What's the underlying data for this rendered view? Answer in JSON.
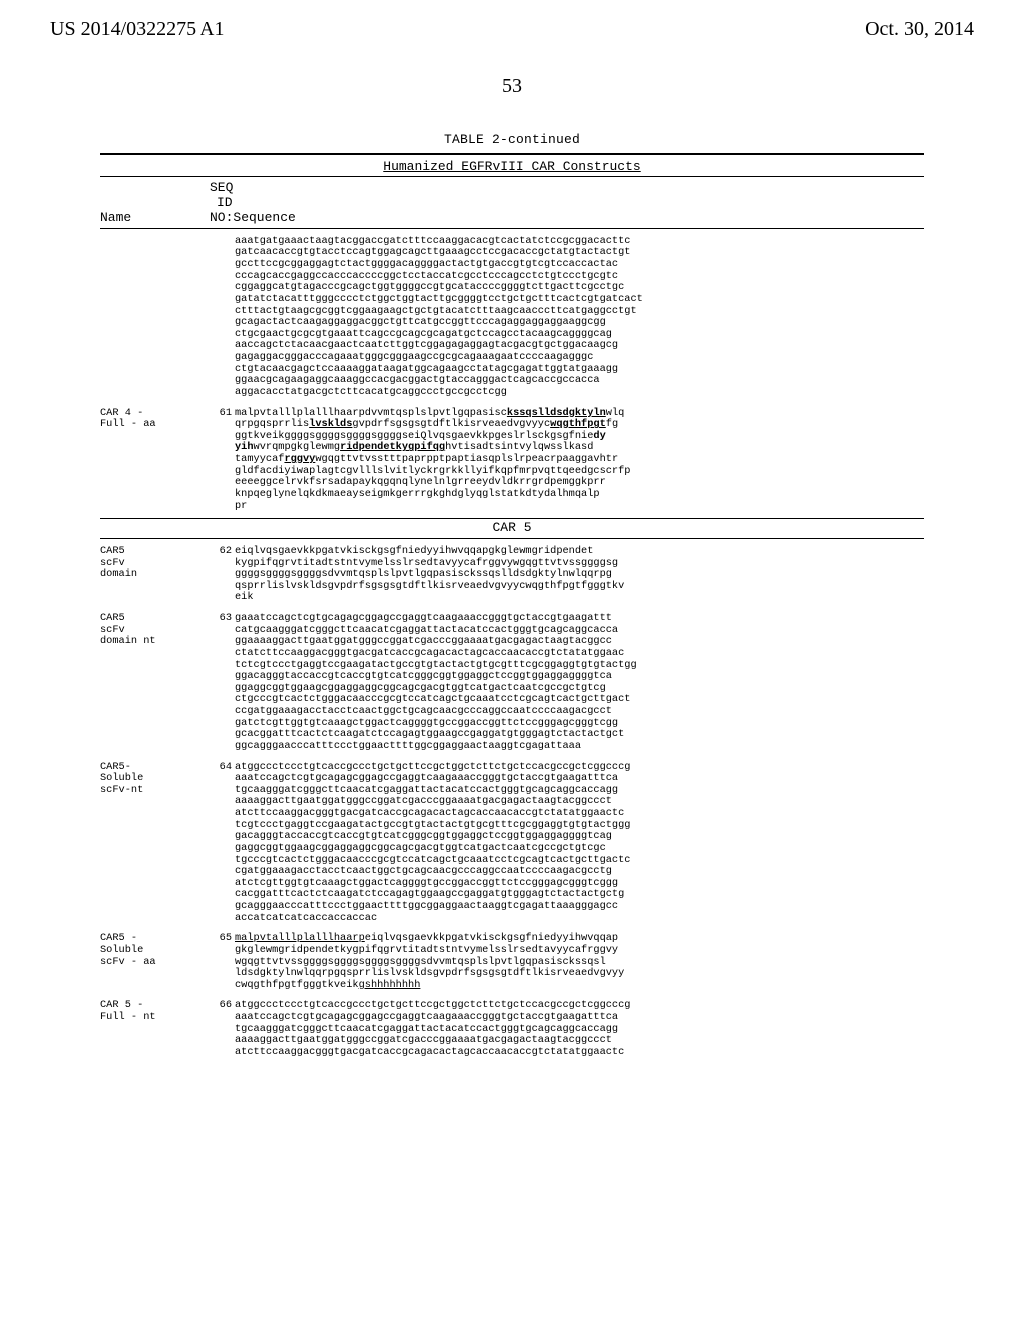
{
  "header": {
    "left": "US 2014/0322275 A1",
    "right": "Oct. 30, 2014"
  },
  "page_number": "53",
  "table_title": "TABLE 2-continued",
  "table_subtitle": "Humanized EGFRvIII CAR Constructs",
  "col": {
    "seq": "SEQ",
    "id": "ID",
    "name": "Name",
    "noseq": "NO:Sequence"
  },
  "car_divider": "CAR 5",
  "entries": [
    {
      "label_lines": [
        ""
      ],
      "num": "",
      "seq_lines": [
        "aaatgatgaaactaagtacggaccgatctttccaaggacacgtcactatctccgcggacacttc",
        "gatcaacaccgtgtacctccagtggagcagcttgaaagcctccgacaccgctatgtactactgt",
        "gccttccgcggaggagtctactggggacaggggactactgtgaccgtgtcgtccaccactac",
        "cccagcaccgaggccacccaccccggctcctaccatcgcctcccagcctctgtccctgcgtc",
        "cggaggcatgtagacccgcagctggtggggccgtgcataccccggggtcttgacttcgcctgc",
        "gatatctacatttgggcccctctggctggtacttgcggggtcctgctgctttcactcgtgatcact",
        "ctttactgtaagcgcggtcggaagaagctgctgtacatctttaagcaacccttcatgaggcctgt",
        "gcagactactcaagaggaggacggctgttcatgccggttcccagaggaggaggaaggcgg",
        "ctgcgaactgcgcgtgaaattcagccgcagcgcagatgctccagcctacaagcaggggcag",
        "aaccagctctacaacgaactcaatcttggtcggagagaggagtacgacgtgctggacaagcg",
        "gagaggacgggacccagaaatgggcgggaagccgcgcagaaagaatccccaagagggc",
        "ctgtacaacgagctccaaaaggataagatggcagaagcctatagcgagattggtatgaaagg",
        "ggaacgcagaagaggcaaaggccacgacggactgtaccagggactcagcaccgccacca",
        "aggacacctatgacgctcttcacatgcaggccctgccgcctcgg"
      ]
    },
    {
      "label_lines": [
        "CAR 4 -",
        "Full - aa"
      ],
      "num": "61",
      "seq_lines": [
        "malpvtalllplalllhaarpdvvmtqsplslpvtlgqpasisc",
        "qrpgqsprrlis",
        "ggtkveikggggsggggsggggsggggseiQlvqsgaevkkpgeslrlsckgsgfnie",
        "wvrqmpgkglewmg",
        "tamyycaf",
        "gldfacdiyiwaplagtcgvlllslvitlyckrgrkkllyifkqpfmrpvqttqeedgcscrfp",
        "eeeeggcelrvkfsrsadapaykqgqnqlynelnlgrreeydvldkrrgrdpemggkprr",
        "knpqeglynelqkdkmaeayseigmkgerrrgkghdglyqglstatkdtydalhmqalp",
        "pr"
      ],
      "rich": [
        {
          "i": 0,
          "parts": [
            {
              "t": "malpvtalllplalllhaarpdvvmtqsplslpvtlgqpasisc"
            },
            {
              "t": "kssqslldsdgktyln",
              "b": true,
              "u": true
            },
            {
              "t": "wlq"
            }
          ]
        },
        {
          "i": 1,
          "parts": [
            {
              "t": "qrpgqsprrlis"
            },
            {
              "t": "lvsklds",
              "b": true,
              "u": true
            },
            {
              "t": "gvpdrfsgsgsgtdftlkisrveaedvgvyyc"
            },
            {
              "t": "wqgthfpgt",
              "b": true,
              "u": true
            },
            {
              "t": "fg"
            }
          ]
        },
        {
          "i": 2,
          "parts": [
            {
              "t": "ggtkveikggggsggggsggggsggggseiQlvqsgaevkkpgeslrlsckgsgfnie"
            },
            {
              "t": "dy",
              "b": true
            }
          ]
        },
        {
          "i": 3,
          "parts": [
            {
              "t": "yih",
              "b": true
            },
            {
              "t": "wvrqmpgkglewmg"
            },
            {
              "t": "ridpendetkygpifqg",
              "b": true,
              "u": true
            },
            {
              "t": "hvtisadtsintvylqwsslkasd"
            }
          ]
        },
        {
          "i": 4,
          "parts": [
            {
              "t": "tamyycaf"
            },
            {
              "t": "rggvy",
              "b": true,
              "u": true
            },
            {
              "t": "wgqgttvtvsstttpaprpptpaptiasqplslrpeacrpaaggavhtr"
            }
          ]
        }
      ]
    },
    {
      "label_lines": [
        "CAR5",
        "scFv",
        "domain"
      ],
      "num": "62",
      "seq_lines": [
        "eiqlvqsgaevkkpgatvkisckgsgfniedyyihwvqqapgkglewmgridpendet",
        "kygpifqgrvtitadtstntvymelsslrsedtavyycafrggvywgqgttvtvssggggsg",
        "ggggsggggsggggsdvvmtqsplslpvtlgqpasisckssqslldsdgktylnwlqqrpg",
        "qsprrlislvskldsgvpdrfsgsgsgtdftlkisrveaedvgvyycwqgthfpgtfgggtkv",
        "eik"
      ]
    },
    {
      "label_lines": [
        "CAR5",
        "scFv",
        "domain nt"
      ],
      "num": "63",
      "seq_lines": [
        "gaaatccagctcgtgcagagcggagccgaggtcaagaaaccgggtgctaccgtgaagattt",
        "catgcaagggatcgggcttcaacatcgaggattactacatccactgggtgcagcaggcacca",
        "ggaaaaggacttgaatggatgggccggatcgacccggaaaatgacgagactaagtacggcc",
        "ctatcttccaaggacgggtgacgatcaccgcagacactagcaccaacaccgtctatatggaac",
        "tctcgtccctgaggtccgaagatactgccgtgtactactgtgcgtttcgcggaggtgtgtactgg",
        "ggacagggtaccaccgtcaccgtgtcatcgggcggtggaggctccggtggaggaggggtca",
        "ggaggcggtggaagcggaggaggcggcagcgacgtggtcatgactcaatcgccgctgtcg",
        "ctgcccgtcactctgggacaacccgcgtccatcagctgcaaatcctcgcagtcactgcttgact",
        "ccgatggaaagacctacctcaactggctgcagcaacgcccaggccaatccccaagacgcct",
        "gatctcgttggtgtcaaagctggactcaggggtgccggaccggttctccgggagcgggtcgg",
        "gcacggatttcactctcaagatctccagagtggaagccgaggatgtgggagtctactactgct",
        "ggcagggaacccatttccctggaacttttggcggaggaactaaggtcgagattaaa"
      ]
    },
    {
      "label_lines": [
        "CAR5-",
        "Soluble",
        "scFv-nt"
      ],
      "num": "64",
      "seq_lines": [
        "atggccctccctgtcaccgccctgctgcttccgctggctcttctgctccacgccgctcggcccg",
        "aaatccagctcgtgcagagcggagccgaggtcaagaaaccgggtgctaccgtgaagatttca",
        "tgcaagggatcgggcttcaacatcgaggattactacatccactgggtgcagcaggcaccagg",
        "aaaaggacttgaatggatgggccggatcgacccggaaaatgacgagactaagtacggccct",
        "atcttccaaggacgggtgacgatcaccgcagacactagcaccaacaccgtctatatggaactc",
        "tcgtccctgaggtccgaagatactgccgtgtactactgtgcgtttcgcggaggtgtgtactggg",
        "gacagggtaccaccgtcaccgtgtcatcgggcggtggaggctccggtggaggaggggtcag",
        "gaggcggtggaagcggaggaggcggcagcgacgtggtcatgactcaatcgccgctgtcgc",
        "tgcccgtcactctgggacaacccgcgtccatcagctgcaaatcctcgcagtcactgcttgactc",
        "cgatggaaagacctacctcaactggctgcagcaacgcccaggccaatccccaagacgcctg",
        "atctcgttggtgtcaaagctggactcaggggtgccggaccggttctccgggagcgggtcggg",
        "cacggatttcactctcaagatctccagagtggaagccgaggatgtgggagtctactactgctg",
        "gcagggaacccatttccctggaacttttggcggaggaactaaggtcgagattaaagggagcc",
        "accatcatcatcaccaccaccac"
      ]
    },
    {
      "label_lines": [
        "CAR5 -",
        "Soluble",
        "scFv - aa"
      ],
      "num": "65",
      "seq_lines": [
        "malpvtalllplalllhaarp",
        "gkglewmgridpendetkygpifqgrvtitadtstntvymelsslrsedtavyycafrggvy",
        "wgqgttvtvssggggsggggsggggsggggsdvvmtqsplslpvtlgqpasisckssqsl",
        "ldsdgktylnwlqqrpgqsprrlislvskldsgvpdrfsgsgsgtdftlkisrveaedvgvyy",
        "cwqgthfpgtfgggtkveik"
      ],
      "rich": [
        {
          "i": 0,
          "parts": [
            {
              "t": "malpvtalllplalllhaarp",
              "u": true
            },
            {
              "t": "eiqlvqsgaevkkpgatvkisckgsgfniedyyihwvqqap"
            }
          ]
        },
        {
          "i": 4,
          "parts": [
            {
              "t": "cwqgthfpgtfgggtkveik"
            },
            {
              "t": "gshhhhhhhh",
              "u": true
            }
          ]
        }
      ]
    },
    {
      "label_lines": [
        "CAR 5 -",
        "Full - nt"
      ],
      "num": "66",
      "seq_lines": [
        "atggccctccctgtcaccgccctgctgcttccgctggctcttctgctccacgccgctcggcccg",
        "aaatccagctcgtgcagagcggagccgaggtcaagaaaccgggtgctaccgtgaagatttca",
        "tgcaagggatcgggcttcaacatcgaggattactacatccactgggtgcagcaggcaccagg",
        "aaaaggacttgaatggatgggccggatcgacccggaaaatgacgagactaagtacggccct",
        "atcttccaaggacgggtgacgatcaccgcagacactagcaccaacaccgtctatatggaactc"
      ]
    }
  ]
}
